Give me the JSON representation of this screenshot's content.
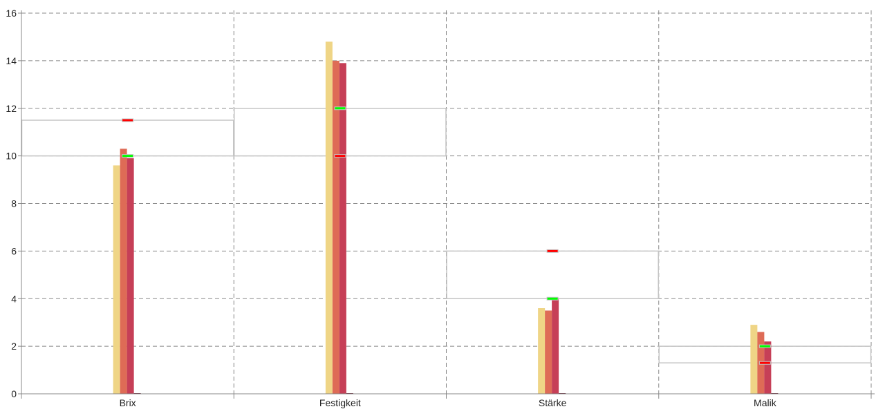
{
  "chart_data": {
    "type": "bar",
    "title": "",
    "xlabel": "",
    "ylabel": "",
    "ylim": [
      0,
      16
    ],
    "yticks": [
      0,
      2,
      4,
      6,
      8,
      10,
      12,
      14,
      16
    ],
    "grid": true,
    "categories": [
      "Brix",
      "Festigkeit",
      "Stärke",
      "Malik"
    ],
    "series": [
      {
        "values": [
          9.6,
          14.8,
          3.6,
          2.9
        ],
        "color": "#EFD586"
      },
      {
        "values": [
          10.3,
          14.0,
          3.5,
          2.6
        ],
        "color": "#DE6B56"
      },
      {
        "values": [
          9.9,
          13.9,
          4.0,
          2.2
        ],
        "color": "#C63F57"
      },
      {
        "values": [
          0,
          0,
          0,
          0
        ],
        "color": "#6B2A3A"
      }
    ],
    "ranges": [
      {
        "low": 10,
        "high": 11.5
      },
      {
        "low": 10,
        "high": 12
      },
      {
        "low": 4,
        "high": 6
      },
      {
        "low": 1.3,
        "high": 2
      }
    ],
    "markers": {
      "green": {
        "values": [
          10,
          12,
          4,
          2
        ],
        "color": "#00FF00"
      },
      "red": {
        "values": [
          11.5,
          10,
          6,
          1.3
        ],
        "color": "#FF0000"
      }
    }
  }
}
